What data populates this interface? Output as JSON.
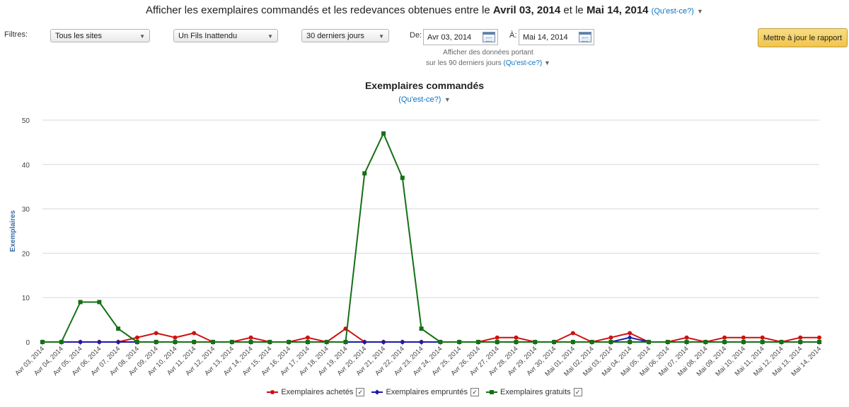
{
  "header": {
    "prefix": "Afficher les exemplaires commandés et les redevances obtenues entre le",
    "start": "Avril 03, 2014",
    "mid": "et le",
    "end": "Mai 14, 2014",
    "help": "(Qu'est-ce?)"
  },
  "filters": {
    "label": "Filtres:",
    "site": "Tous les sites",
    "title": "Un Fils Inattendu",
    "period": "30 derniers jours",
    "from_label": "De:",
    "from_value": "Avr 03, 2014",
    "to_label": "À:",
    "to_value": "Mai 14, 2014",
    "note_line1": "Afficher des données portant",
    "note_line2": "sur les 90 derniers jours",
    "note_help": "(Qu'est-ce?)",
    "update_button": "Mettre à jour le rapport"
  },
  "chart_heading": {
    "title": "Exemplaires commandés",
    "help": "(Qu'est-ce?)"
  },
  "colors": {
    "achetes": "#cc1111",
    "empruntes": "#1a1aa8",
    "gratuits": "#157015",
    "link": "#0a72c2"
  },
  "chart_data": {
    "type": "line",
    "title": "Exemplaires commandés",
    "ylabel": "Exemplaires",
    "xlabel": "",
    "ylim": [
      0,
      50
    ],
    "yticks": [
      0,
      10,
      20,
      30,
      40,
      50
    ],
    "grid": true,
    "legend_position": "bottom",
    "x": [
      "Avr 03, 2014",
      "Avr 04, 2014",
      "Avr 05, 2014",
      "Avr 06, 2014",
      "Avr 07, 2014",
      "Avr 08, 2014",
      "Avr 09, 2014",
      "Avr 10, 2014",
      "Avr 11, 2014",
      "Avr 12, 2014",
      "Avr 13, 2014",
      "Avr 14, 2014",
      "Avr 15, 2014",
      "Avr 16, 2014",
      "Avr 17, 2014",
      "Avr 18, 2014",
      "Avr 19, 2014",
      "Avr 20, 2014",
      "Avr 21, 2014",
      "Avr 22, 2014",
      "Avr 23, 2014",
      "Avr 24, 2014",
      "Avr 25, 2014",
      "Avr 26, 2014",
      "Avr 27, 2014",
      "Avr 28, 2014",
      "Avr 29, 2014",
      "Avr 30, 2014",
      "Mai 01, 2014",
      "Mai 02, 2014",
      "Mai 03, 2014",
      "Mai 04, 2014",
      "Mai 05, 2014",
      "Mai 06, 2014",
      "Mai 07, 2014",
      "Mai 08, 2014",
      "Mai 09, 2014",
      "Mai 10, 2014",
      "Mai 11, 2014",
      "Mai 12, 2014",
      "Mai 13, 2014",
      "Mai 14, 2014"
    ],
    "series": [
      {
        "name": "Exemplaires achetés",
        "marker": "circle",
        "values": [
          0,
          0,
          0,
          0,
          0,
          1,
          2,
          1,
          2,
          0,
          0,
          1,
          0,
          0,
          1,
          0,
          3,
          0,
          0,
          0,
          0,
          0,
          0,
          0,
          1,
          1,
          0,
          0,
          2,
          0,
          1,
          2,
          0,
          0,
          1,
          0,
          1,
          1,
          1,
          0,
          1,
          1
        ]
      },
      {
        "name": "Exemplaires empruntés",
        "marker": "diamond",
        "values": [
          0,
          0,
          0,
          0,
          0,
          0,
          0,
          0,
          0,
          0,
          0,
          0,
          0,
          0,
          0,
          0,
          0,
          0,
          0,
          0,
          0,
          0,
          0,
          0,
          0,
          0,
          0,
          0,
          0,
          0,
          0,
          1,
          0,
          0,
          0,
          0,
          0,
          0,
          0,
          0,
          0,
          0
        ]
      },
      {
        "name": "Exemplaires gratuits",
        "marker": "square",
        "values": [
          0,
          0,
          9,
          9,
          3,
          0,
          0,
          0,
          0,
          0,
          0,
          0,
          0,
          0,
          0,
          0,
          0,
          38,
          47,
          37,
          3,
          0,
          0,
          0,
          0,
          0,
          0,
          0,
          0,
          0,
          0,
          0,
          0,
          0,
          0,
          0,
          0,
          0,
          0,
          0,
          0,
          0
        ]
      }
    ]
  }
}
